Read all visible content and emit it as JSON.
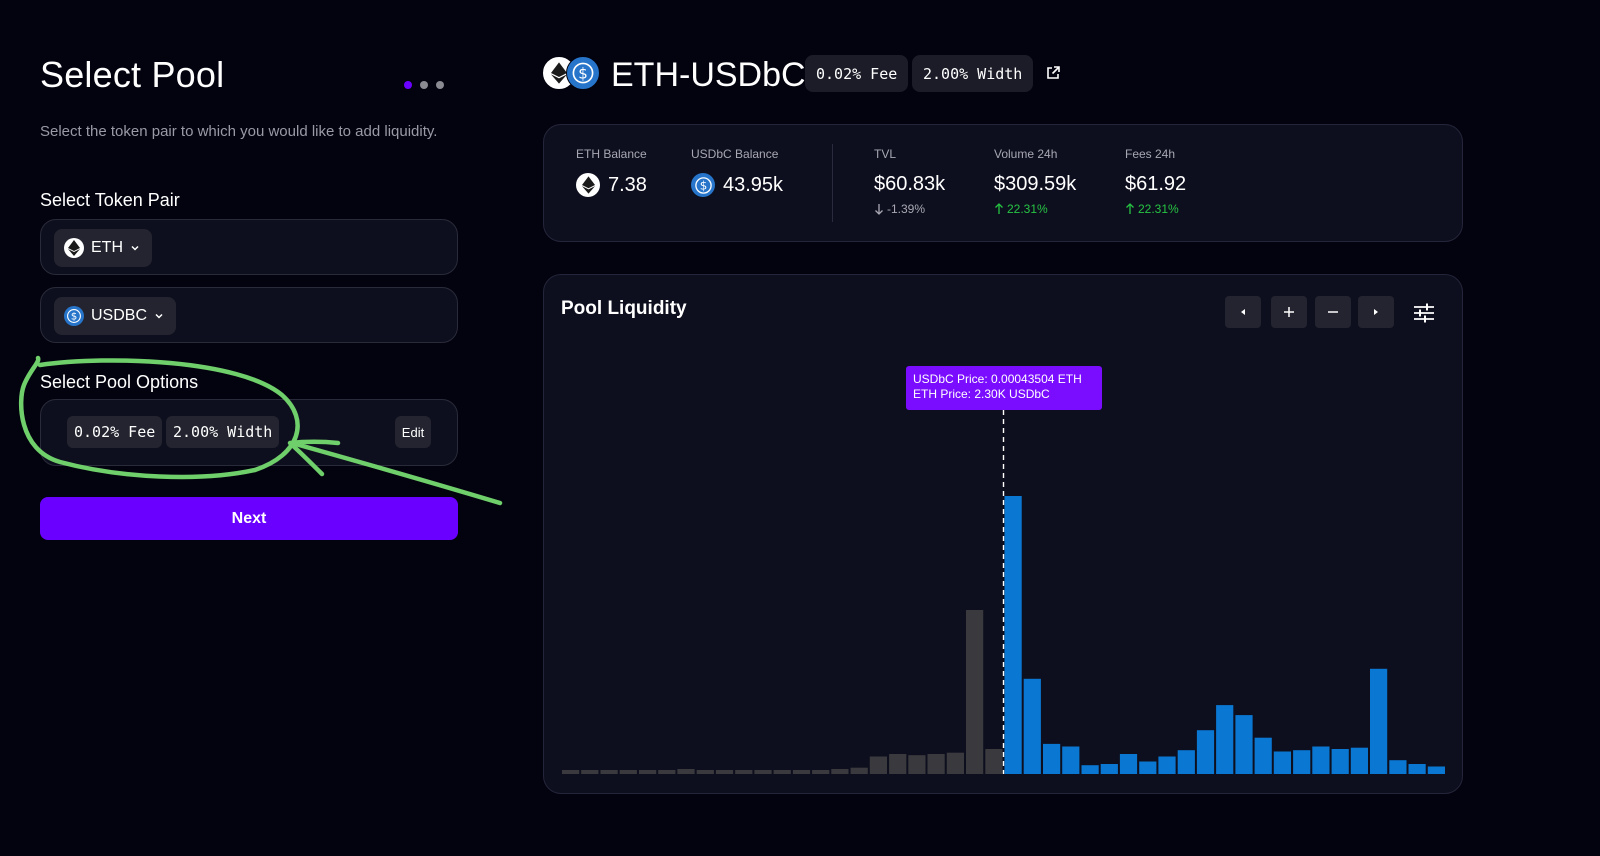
{
  "left_panel": {
    "title": "Select Pool",
    "subtitle": "Select the token pair to which you would like to add liquidity.",
    "token_pair_label": "Select Token Pair",
    "token_a": "ETH",
    "token_b": "USDBC",
    "pool_options_label": "Select Pool Options",
    "fee_chip": "0.02% Fee",
    "width_chip": "2.00% Width",
    "edit_label": "Edit",
    "next_label": "Next",
    "step_dots": 3,
    "active_step": 1
  },
  "header": {
    "pair": "ETH-USDbC",
    "fee_chip": "0.02% Fee",
    "width_chip": "2.00% Width"
  },
  "stats": {
    "eth_balance_label": "ETH Balance",
    "eth_balance": "7.38",
    "usdbc_balance_label": "USDbC Balance",
    "usdbc_balance": "43.95k",
    "tvl_label": "TVL",
    "tvl": "$60.83k",
    "tvl_change": "-1.39%",
    "volume_label": "Volume 24h",
    "volume": "$309.59k",
    "volume_change": "22.31%",
    "fees_label": "Fees 24h",
    "fees": "$61.92",
    "fees_change": "22.31%"
  },
  "chart": {
    "title": "Pool Liquidity",
    "controls": [
      "left-arrow",
      "plus",
      "minus",
      "right-arrow",
      "settings"
    ],
    "tooltip_line1": "USDbC Price:  0.00043504 ETH",
    "tooltip_line2": "ETH Price:  2.30K USDbC"
  },
  "chart_data": {
    "type": "bar",
    "current_price_index": 23,
    "values": [
      2,
      2,
      2,
      2,
      2,
      2,
      4,
      2,
      2,
      2,
      2,
      2,
      2,
      2,
      4,
      5,
      14,
      16,
      15,
      16,
      17,
      131,
      20,
      222,
      76,
      24,
      22,
      7,
      8,
      16,
      10,
      14,
      19,
      35,
      55,
      47,
      29,
      18,
      19,
      22,
      20,
      21,
      84,
      11,
      8,
      6
    ],
    "colors": {
      "below": "#3a3a3e",
      "above": "#0a78d2"
    }
  },
  "colors": {
    "accent": "#6a00ff",
    "bar_blue": "#0a78d2",
    "bar_gray": "#3a3a3e",
    "positive": "#26c443",
    "annotation": "#6fcf6a"
  }
}
